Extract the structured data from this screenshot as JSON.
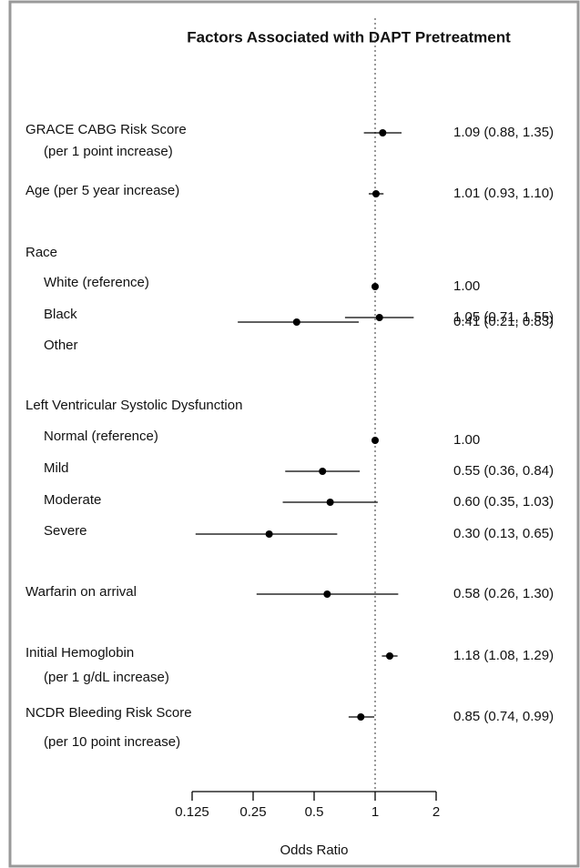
{
  "chart_data": {
    "type": "forest",
    "title": "Factors Associated with DAPT Pretreatment",
    "x_label": "Odds Ratio",
    "log_scale": true,
    "xlim": [
      0.125,
      2
    ],
    "xticks": [
      0.125,
      0.25,
      0.5,
      1,
      2
    ],
    "reference_line": 1,
    "color": "#000000",
    "rows": [
      {
        "label": "GRACE CABG Risk Score",
        "sublabel": "(per 1 point increase)",
        "estimate": 1.09,
        "lower": 0.88,
        "upper": 1.35,
        "value_label": "1.09 (0.88, 1.35)"
      },
      {
        "label": "Age (per 5 year increase)",
        "estimate": 1.01,
        "lower": 0.93,
        "upper": 1.1,
        "value_label": "1.01 (0.93, 1.10)"
      },
      {
        "label": "Race"
      },
      {
        "label": "White (reference)",
        "estimate": 1,
        "value_label": "1.00"
      },
      {
        "label": "Black",
        "estimate": 1.05,
        "lower": 0.71,
        "upper": 1.55,
        "value_label": "1.05 (0.71, 1.55)"
      },
      {
        "label": "Other",
        "estimate": 0.41,
        "lower": 0.21,
        "upper": 0.83,
        "value_label": "0.41 (0.21, 0.83)"
      },
      {
        "label": "Left Ventricular Systolic  Dysfunction"
      },
      {
        "label": "Normal (reference)",
        "estimate": 1,
        "value_label": "1.00"
      },
      {
        "label": "Mild",
        "estimate": 0.55,
        "lower": 0.36,
        "upper": 0.84,
        "value_label": "0.55 (0.36, 0.84)"
      },
      {
        "label": "Moderate",
        "estimate": 0.6,
        "lower": 0.35,
        "upper": 1.03,
        "value_label": "0.60 (0.35, 1.03)"
      },
      {
        "label": "Severe",
        "estimate": 0.3,
        "lower": 0.13,
        "upper": 0.65,
        "value_label": "0.30 (0.13, 0.65)"
      },
      {
        "label": "Warfarin on arrival",
        "estimate": 0.58,
        "lower": 0.26,
        "upper": 1.3,
        "value_label": "0.58 (0.26, 1.30)"
      },
      {
        "label": "Initial Hemoglobin",
        "sublabel": "(per 1 g/dL increase)",
        "estimate": 1.18,
        "lower": 1.08,
        "upper": 1.29,
        "value_label": "1.18 (1.08, 1.29)"
      },
      {
        "label": "NCDR Bleeding Risk Score",
        "sublabel": "(per 10 point increase)",
        "estimate": 0.85,
        "lower": 0.74,
        "upper": 0.99,
        "value_label": "0.85 (0.74, 0.99)"
      }
    ]
  }
}
